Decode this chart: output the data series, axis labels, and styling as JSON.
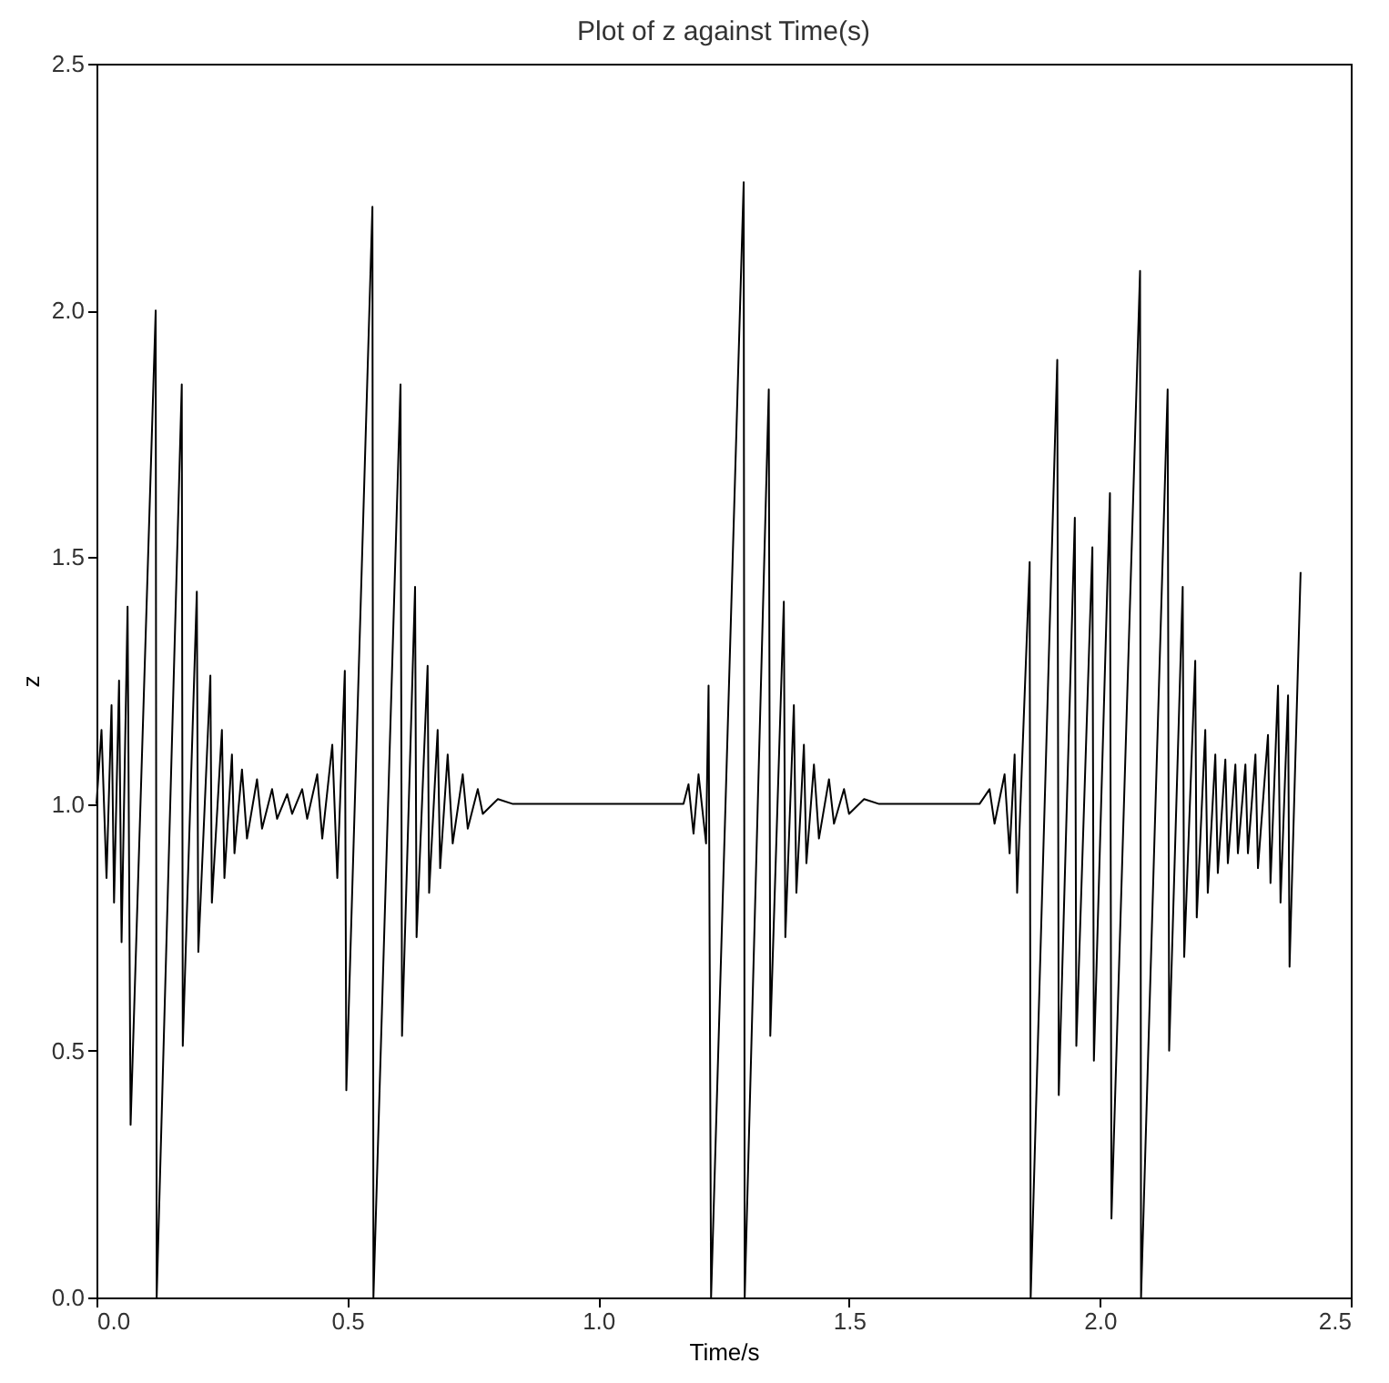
{
  "chart_data": {
    "type": "line",
    "title": "Plot of z against Time(s)",
    "xlabel": "Time/s",
    "ylabel": "z",
    "xlim": [
      0.0,
      2.5
    ],
    "xticks": [
      {
        "value": 0,
        "label": "0.0"
      },
      0.5,
      {
        "value": 1,
        "label": "1.0"
      },
      1.5,
      {
        "value": 2,
        "label": "2.0"
      },
      2.5
    ],
    "ylim": [
      0.0,
      2.5
    ],
    "yticks": [
      {
        "value": 0,
        "label": "0.0"
      },
      0.5,
      {
        "value": 1,
        "label": "1.0"
      },
      1.5,
      {
        "value": 2,
        "label": "2.0"
      },
      2.5
    ],
    "grid": false,
    "marker": "none",
    "line_style": "solid",
    "series": [
      {
        "color": "#000000",
        "x": [
          0.0,
          0.01,
          0.02,
          0.03,
          0.035,
          0.045,
          0.05,
          0.062,
          0.068,
          0.118,
          0.12,
          0.17,
          0.172,
          0.2,
          0.203,
          0.227,
          0.23,
          0.25,
          0.255,
          0.27,
          0.275,
          0.29,
          0.3,
          0.32,
          0.33,
          0.35,
          0.36,
          0.38,
          0.39,
          0.41,
          0.42,
          0.44,
          0.45,
          0.47,
          0.48,
          0.495,
          0.498,
          0.55,
          0.552,
          0.606,
          0.609,
          0.635,
          0.638,
          0.66,
          0.663,
          0.68,
          0.685,
          0.7,
          0.71,
          0.73,
          0.74,
          0.76,
          0.77,
          0.8,
          0.83,
          1.17,
          1.18,
          1.19,
          1.2,
          1.215,
          1.22,
          1.225,
          1.29,
          1.292,
          1.34,
          1.343,
          1.37,
          1.373,
          1.39,
          1.395,
          1.41,
          1.415,
          1.43,
          1.44,
          1.46,
          1.47,
          1.49,
          1.5,
          1.53,
          1.56,
          1.76,
          1.78,
          1.79,
          1.81,
          1.82,
          1.83,
          1.835,
          1.86,
          1.862,
          1.915,
          1.918,
          1.95,
          1.953,
          1.985,
          1.988,
          2.02,
          2.023,
          2.08,
          2.082,
          2.135,
          2.138,
          2.165,
          2.168,
          2.19,
          2.193,
          2.21,
          2.215,
          2.23,
          2.235,
          2.25,
          2.255,
          2.27,
          2.275,
          2.29,
          2.295,
          2.31,
          2.315,
          2.335,
          2.34,
          2.355,
          2.36,
          2.375,
          2.378,
          2.4
        ],
        "values": [
          1.0,
          1.15,
          0.85,
          1.2,
          0.8,
          1.25,
          0.72,
          1.4,
          0.35,
          2.0,
          0.0,
          1.85,
          0.51,
          1.43,
          0.7,
          1.26,
          0.8,
          1.15,
          0.85,
          1.1,
          0.9,
          1.07,
          0.93,
          1.05,
          0.95,
          1.03,
          0.97,
          1.02,
          0.98,
          1.03,
          0.97,
          1.06,
          0.93,
          1.12,
          0.85,
          1.27,
          0.42,
          2.21,
          0.0,
          1.85,
          0.53,
          1.44,
          0.73,
          1.28,
          0.82,
          1.15,
          0.87,
          1.1,
          0.92,
          1.06,
          0.95,
          1.03,
          0.98,
          1.01,
          1.0,
          1.0,
          1.04,
          0.94,
          1.06,
          0.92,
          1.24,
          0.0,
          2.26,
          0.0,
          1.84,
          0.53,
          1.41,
          0.73,
          1.2,
          0.82,
          1.12,
          0.88,
          1.08,
          0.93,
          1.05,
          0.96,
          1.03,
          0.98,
          1.01,
          1.0,
          1.0,
          1.03,
          0.96,
          1.06,
          0.9,
          1.1,
          0.82,
          1.49,
          0.0,
          1.9,
          0.41,
          1.58,
          0.51,
          1.52,
          0.48,
          1.63,
          0.16,
          2.08,
          0.0,
          1.84,
          0.5,
          1.44,
          0.69,
          1.29,
          0.77,
          1.15,
          0.82,
          1.1,
          0.86,
          1.09,
          0.88,
          1.08,
          0.9,
          1.08,
          0.9,
          1.1,
          0.87,
          1.14,
          0.84,
          1.24,
          0.8,
          1.22,
          0.67,
          1.47
        ]
      }
    ]
  }
}
